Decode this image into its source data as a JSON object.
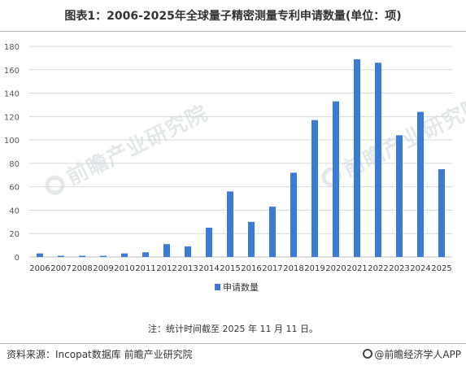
{
  "title": "图表1：2006-2025年全球量子精密测量专利申请数量(单位：项)",
  "note": "注：统计时间截至 2025 年 11 月 11 日。",
  "source": "资料来源：Incopat数据库 前瞻产业研究院",
  "brand": "@前瞻经济学人APP",
  "watermark": "前瞻产业研究院",
  "colors": {
    "bar": "#3a7bd5",
    "axis": "#bfbfbf",
    "grid": "#d9d9d9",
    "text": "#595959"
  },
  "chart_data": {
    "type": "bar",
    "categories": [
      "2006",
      "2007",
      "2008",
      "2009",
      "2010",
      "2011",
      "2012",
      "2013",
      "2014",
      "2015",
      "2016",
      "2017",
      "2018",
      "2019",
      "2020",
      "2021",
      "2022",
      "2023",
      "2024",
      "2025"
    ],
    "series": [
      {
        "name": "申请数量",
        "values": [
          3,
          1,
          1,
          1,
          3,
          4,
          11,
          9,
          25,
          56,
          30,
          43,
          72,
          117,
          133,
          169,
          166,
          104,
          124,
          75
        ]
      }
    ],
    "ylim": [
      0,
      180
    ],
    "yticks": [
      0,
      20,
      40,
      60,
      80,
      100,
      120,
      140,
      160,
      180
    ],
    "grid": true,
    "legend_position": "bottom"
  }
}
